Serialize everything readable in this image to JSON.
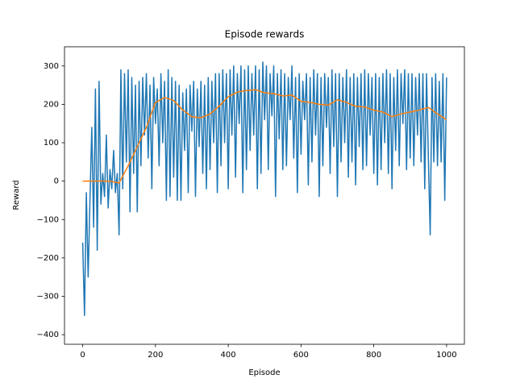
{
  "chart_data": {
    "type": "line",
    "title": "Episode rewards",
    "x_label": "Episode",
    "y_label": "Reward",
    "xlim": [
      -50,
      1049
    ],
    "ylim": [
      -425,
      350
    ],
    "xticks": [
      0,
      200,
      400,
      600,
      800,
      1000
    ],
    "yticks": [
      {
        "value": -400,
        "label": "−400"
      },
      {
        "value": -300,
        "label": "−300"
      },
      {
        "value": -200,
        "label": "−200"
      },
      {
        "value": -100,
        "label": "−100"
      },
      0,
      100,
      200,
      300
    ],
    "series": [
      {
        "color": "#1f77b4",
        "x": [
          0,
          5,
          10,
          15,
          20,
          25,
          30,
          35,
          40,
          45,
          50,
          55,
          60,
          65,
          70,
          75,
          80,
          85,
          90,
          95,
          100,
          105,
          110,
          115,
          120,
          125,
          130,
          135,
          140,
          145,
          150,
          155,
          160,
          165,
          170,
          175,
          180,
          185,
          190,
          195,
          200,
          205,
          210,
          215,
          220,
          225,
          230,
          235,
          240,
          245,
          250,
          255,
          260,
          265,
          270,
          275,
          280,
          285,
          290,
          295,
          300,
          305,
          310,
          315,
          320,
          325,
          330,
          335,
          340,
          345,
          350,
          355,
          360,
          365,
          370,
          375,
          380,
          385,
          390,
          395,
          400,
          405,
          410,
          415,
          420,
          425,
          430,
          435,
          440,
          445,
          450,
          455,
          460,
          465,
          470,
          475,
          480,
          485,
          490,
          495,
          500,
          505,
          510,
          515,
          520,
          525,
          530,
          535,
          540,
          545,
          550,
          555,
          560,
          565,
          570,
          575,
          580,
          585,
          590,
          595,
          600,
          605,
          610,
          615,
          620,
          625,
          630,
          635,
          640,
          645,
          650,
          655,
          660,
          665,
          670,
          675,
          680,
          685,
          690,
          695,
          700,
          705,
          710,
          715,
          720,
          725,
          730,
          735,
          740,
          745,
          750,
          755,
          760,
          765,
          770,
          775,
          780,
          785,
          790,
          795,
          800,
          805,
          810,
          815,
          820,
          825,
          830,
          835,
          840,
          845,
          850,
          855,
          860,
          865,
          870,
          875,
          880,
          885,
          890,
          895,
          900,
          905,
          910,
          915,
          920,
          925,
          930,
          935,
          940,
          945,
          950,
          955,
          960,
          965,
          970,
          975,
          980,
          985,
          990,
          995,
          1000
        ],
        "values": [
          -160,
          -350,
          -30,
          -250,
          -50,
          140,
          -120,
          240,
          -180,
          260,
          -60,
          20,
          -40,
          120,
          -70,
          30,
          -20,
          80,
          -30,
          20,
          -140,
          290,
          -20,
          280,
          50,
          290,
          -80,
          270,
          20,
          250,
          -80,
          260,
          40,
          270,
          120,
          280,
          60,
          250,
          -20,
          270,
          150,
          240,
          40,
          280,
          100,
          260,
          -50,
          290,
          -40,
          270,
          10,
          260,
          -50,
          250,
          -50,
          230,
          80,
          240,
          -30,
          250,
          130,
          260,
          -40,
          240,
          90,
          260,
          20,
          250,
          -20,
          270,
          30,
          260,
          100,
          280,
          -30,
          280,
          40,
          290,
          100,
          280,
          -20,
          290,
          120,
          300,
          10,
          280,
          150,
          300,
          -30,
          290,
          30,
          300,
          80,
          280,
          120,
          300,
          -20,
          290,
          20,
          310,
          160,
          300,
          30,
          280,
          170,
          300,
          -40,
          280,
          110,
          290,
          30,
          280,
          40,
          270,
          160,
          300,
          60,
          270,
          -30,
          280,
          70,
          260,
          160,
          280,
          -10,
          270,
          50,
          290,
          120,
          280,
          -40,
          270,
          40,
          280,
          140,
          270,
          20,
          290,
          90,
          280,
          -40,
          280,
          50,
          270,
          100,
          290,
          10,
          270,
          50,
          280,
          -10,
          270,
          90,
          280,
          30,
          290,
          40,
          280,
          120,
          270,
          20,
          280,
          -10,
          270,
          30,
          280,
          100,
          290,
          20,
          280,
          -20,
          270,
          80,
          290,
          40,
          280,
          150,
          290,
          30,
          280,
          60,
          280,
          40,
          270,
          120,
          280,
          50,
          280,
          -20,
          280,
          60,
          -140,
          270,
          50,
          280,
          40,
          260,
          50,
          280,
          -50,
          270
        ]
      },
      {
        "color": "#ff7f0e",
        "x": [
          0,
          25,
          50,
          75,
          100,
          125,
          150,
          175,
          200,
          225,
          250,
          275,
          300,
          325,
          350,
          375,
          400,
          425,
          450,
          475,
          500,
          525,
          550,
          575,
          600,
          625,
          650,
          675,
          700,
          725,
          750,
          775,
          800,
          825,
          850,
          875,
          900,
          925,
          950,
          975,
          1000
        ],
        "values": [
          0,
          0,
          0,
          0,
          -5,
          40,
          90,
          140,
          205,
          218,
          210,
          185,
          168,
          165,
          175,
          195,
          220,
          232,
          236,
          238,
          230,
          228,
          222,
          224,
          208,
          205,
          200,
          198,
          212,
          205,
          195,
          193,
          185,
          180,
          168,
          175,
          180,
          185,
          192,
          175,
          160
        ]
      }
    ]
  }
}
